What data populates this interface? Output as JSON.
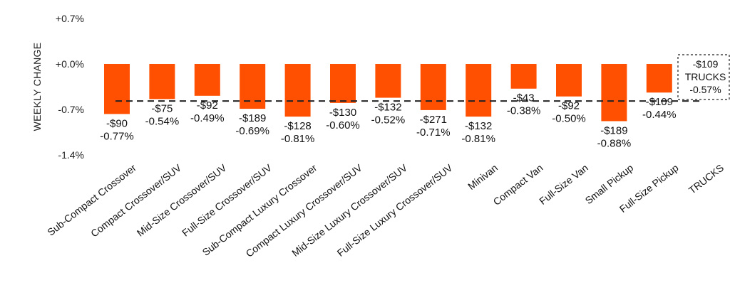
{
  "chart_data": {
    "type": "bar",
    "ylabel": "WEEKLY CHANGE",
    "ylim": [
      -1.4,
      0.7
    ],
    "yticks": [
      0.7,
      0.0,
      -0.7,
      -1.4
    ],
    "ytick_labels": [
      "+0.7%",
      "+0.0%",
      "-0.7%",
      "-1.4%"
    ],
    "grid": false,
    "bar_color": "#ff4f00",
    "categories": [
      "Sub-Compact Crossover",
      "Compact Crossover/SUV",
      "Mid-Size Crossover/SUV",
      "Full-Size Crossover/SUV",
      "Sub-Compact Luxury Crossover",
      "Compact Luxury Crossover/SUV",
      "Mid-Size Luxury Crossover/SUV",
      "Full-Size Luxury Crossover/SUV",
      "Minivan",
      "Compact Van",
      "Full-Size Van",
      "Small Pickup",
      "Full-Size Pickup",
      "TRUCKS"
    ],
    "values": [
      -0.77,
      -0.54,
      -0.49,
      -0.69,
      -0.81,
      -0.6,
      -0.52,
      -0.71,
      -0.81,
      -0.38,
      -0.5,
      -0.88,
      -0.44,
      null
    ],
    "dollar_labels": [
      "-$90",
      "-$75",
      "-$92",
      "-$189",
      "-$128",
      "-$130",
      "-$132",
      "-$271",
      "-$132",
      "-$43",
      "-$92",
      "-$189",
      "-$109",
      ""
    ],
    "percent_labels": [
      "-0.77%",
      "-0.54%",
      "-0.49%",
      "-0.69%",
      "-0.81%",
      "-0.60%",
      "-0.52%",
      "-0.71%",
      "-0.81%",
      "-0.38%",
      "-0.50%",
      "-0.88%",
      "-0.44%",
      ""
    ],
    "reference_line": {
      "value": -0.57,
      "style": "dashed",
      "label_lines": [
        "-$109",
        "TRUCKS",
        "-0.57%"
      ]
    }
  }
}
